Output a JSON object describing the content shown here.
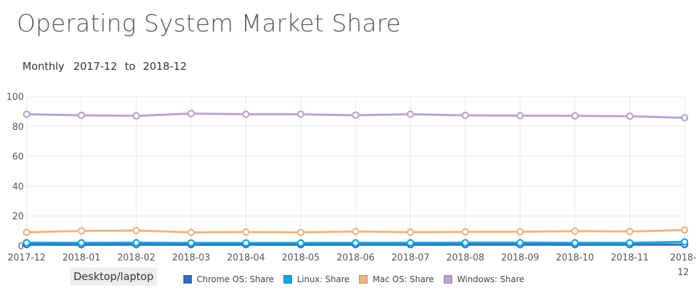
{
  "title": "Operating System Market Share",
  "period": {
    "granularity": "Monthly",
    "from": "2017-12",
    "to_word": "to",
    "to": "2018-12"
  },
  "category": "Desktop/laptop",
  "colors": {
    "chrome": "#2d6fc7",
    "linux": "#0ba8e6",
    "mac": "#f2b47a",
    "windows": "#b9a4d0",
    "grid": "#e8e8e8",
    "axis": "#cfcfcf"
  },
  "chart_data": {
    "type": "line",
    "categories": [
      "2017-12",
      "2018-01",
      "2018-02",
      "2018-03",
      "2018-04",
      "2018-05",
      "2018-06",
      "2018-07",
      "2018-08",
      "2018-09",
      "2018-10",
      "2018-11",
      "2018-12"
    ],
    "x_tick_labels": [
      [
        "2017-12"
      ],
      [
        "2018-01"
      ],
      [
        "2018-02"
      ],
      [
        "2018-03"
      ],
      [
        "2018-04"
      ],
      [
        "2018-05"
      ],
      [
        "2018-06"
      ],
      [
        "2018-07"
      ],
      [
        "2018-08"
      ],
      [
        "2018-09"
      ],
      [
        "2018-10"
      ],
      [
        "2018-11"
      ],
      [
        "2018-",
        "12"
      ]
    ],
    "ylim": [
      0,
      100
    ],
    "yticks": [
      0,
      20,
      40,
      60,
      80,
      100
    ],
    "grid": true,
    "legend_position": "bottom",
    "series": [
      {
        "key": "chrome",
        "name": "Chrome OS: Share",
        "values": [
          0.8,
          0.8,
          0.8,
          0.8,
          0.8,
          0.8,
          0.8,
          0.8,
          0.8,
          0.8,
          0.8,
          0.8,
          0.9
        ]
      },
      {
        "key": "linux",
        "name": "Linux: Share",
        "values": [
          2.1,
          2.0,
          2.1,
          1.9,
          1.9,
          1.9,
          2.0,
          2.0,
          2.1,
          2.1,
          2.0,
          2.0,
          2.6
        ]
      },
      {
        "key": "mac",
        "name": "Mac OS: Share",
        "values": [
          9.0,
          10.0,
          10.2,
          9.0,
          9.2,
          9.0,
          9.6,
          9.1,
          9.3,
          9.4,
          9.8,
          9.6,
          10.6
        ]
      },
      {
        "key": "windows",
        "name": "Windows: Share",
        "values": [
          88.0,
          87.3,
          87.0,
          88.5,
          88.0,
          88.0,
          87.4,
          88.0,
          87.3,
          87.1,
          87.0,
          86.7,
          85.7
        ]
      }
    ]
  }
}
